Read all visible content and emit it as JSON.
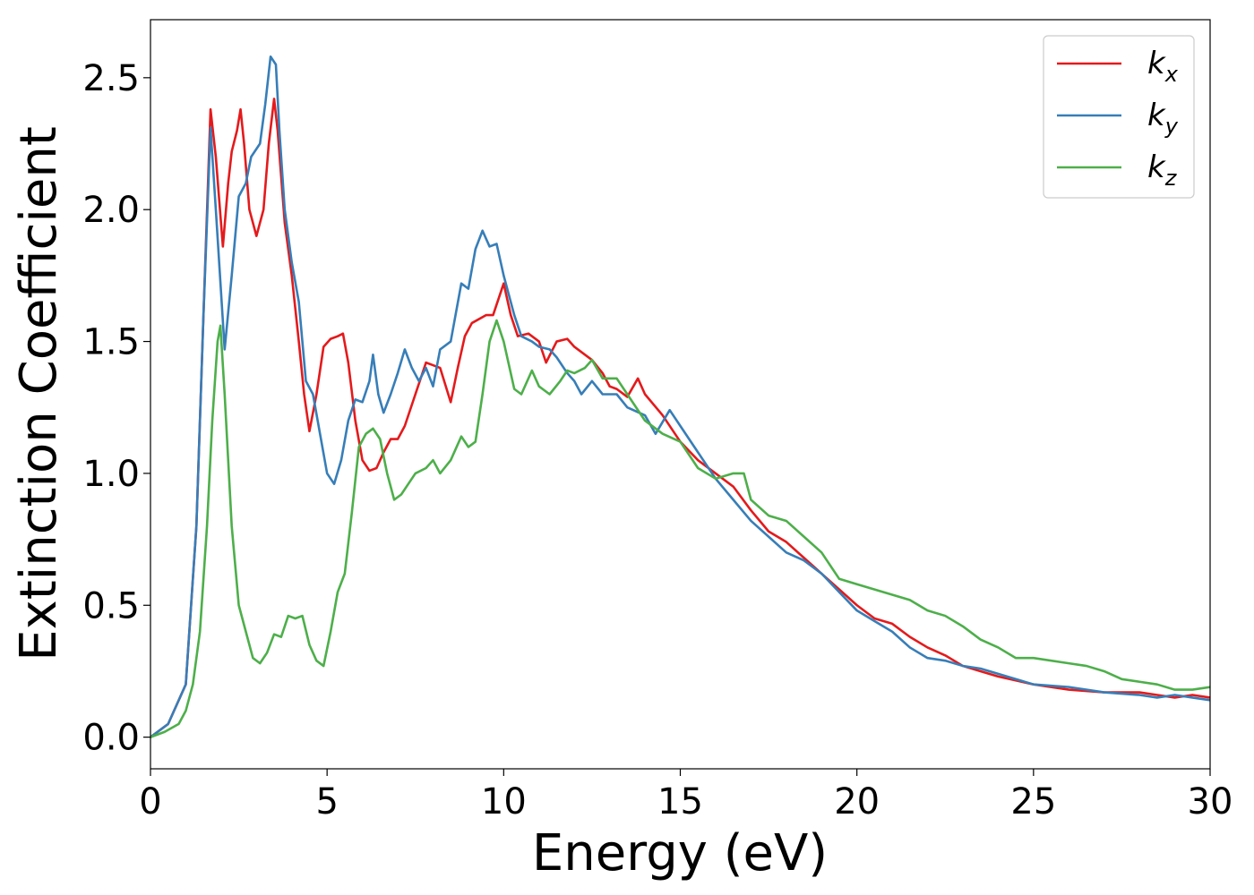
{
  "chart_data": {
    "type": "line",
    "title": "",
    "xlabel": "Energy (eV)",
    "ylabel": "Extinction Coefficient",
    "xlim": [
      0,
      30
    ],
    "ylim": [
      -0.12,
      2.72
    ],
    "grid": false,
    "legend_position": "top-right",
    "x_ticks": [
      "0",
      "5",
      "10",
      "15",
      "20",
      "25",
      "30"
    ],
    "y_ticks": [
      "0.0",
      "0.5",
      "1.0",
      "1.5",
      "2.0",
      "2.5"
    ],
    "series": [
      {
        "name": "k",
        "subscript": "x",
        "color": "#e41a1c",
        "points": [
          [
            0,
            0
          ],
          [
            0.5,
            0.05
          ],
          [
            1.0,
            0.2
          ],
          [
            1.3,
            0.8
          ],
          [
            1.5,
            1.6
          ],
          [
            1.7,
            2.38
          ],
          [
            1.85,
            2.2
          ],
          [
            2.05,
            1.86
          ],
          [
            2.2,
            2.1
          ],
          [
            2.3,
            2.22
          ],
          [
            2.45,
            2.3
          ],
          [
            2.55,
            2.38
          ],
          [
            2.65,
            2.25
          ],
          [
            2.8,
            2.0
          ],
          [
            3.0,
            1.9
          ],
          [
            3.2,
            2.0
          ],
          [
            3.35,
            2.25
          ],
          [
            3.5,
            2.42
          ],
          [
            3.6,
            2.3
          ],
          [
            3.8,
            1.95
          ],
          [
            4.0,
            1.75
          ],
          [
            4.2,
            1.5
          ],
          [
            4.35,
            1.3
          ],
          [
            4.5,
            1.16
          ],
          [
            4.7,
            1.3
          ],
          [
            4.9,
            1.48
          ],
          [
            5.1,
            1.51
          ],
          [
            5.3,
            1.52
          ],
          [
            5.45,
            1.53
          ],
          [
            5.6,
            1.42
          ],
          [
            5.8,
            1.2
          ],
          [
            6.0,
            1.05
          ],
          [
            6.2,
            1.01
          ],
          [
            6.4,
            1.02
          ],
          [
            6.6,
            1.08
          ],
          [
            6.8,
            1.13
          ],
          [
            7.0,
            1.13
          ],
          [
            7.2,
            1.18
          ],
          [
            7.5,
            1.3
          ],
          [
            7.8,
            1.42
          ],
          [
            8.0,
            1.41
          ],
          [
            8.2,
            1.4
          ],
          [
            8.5,
            1.27
          ],
          [
            8.7,
            1.4
          ],
          [
            8.9,
            1.52
          ],
          [
            9.1,
            1.57
          ],
          [
            9.5,
            1.6
          ],
          [
            9.7,
            1.6
          ],
          [
            10.0,
            1.72
          ],
          [
            10.2,
            1.6
          ],
          [
            10.4,
            1.52
          ],
          [
            10.7,
            1.53
          ],
          [
            11.0,
            1.5
          ],
          [
            11.2,
            1.42
          ],
          [
            11.5,
            1.5
          ],
          [
            11.8,
            1.51
          ],
          [
            12.0,
            1.48
          ],
          [
            12.3,
            1.45
          ],
          [
            12.5,
            1.43
          ],
          [
            12.8,
            1.38
          ],
          [
            13.0,
            1.33
          ],
          [
            13.2,
            1.32
          ],
          [
            13.5,
            1.29
          ],
          [
            13.8,
            1.36
          ],
          [
            14.0,
            1.3
          ],
          [
            14.5,
            1.22
          ],
          [
            15.0,
            1.12
          ],
          [
            15.5,
            1.05
          ],
          [
            16.0,
            1.0
          ],
          [
            16.5,
            0.95
          ],
          [
            17.0,
            0.86
          ],
          [
            17.5,
            0.78
          ],
          [
            18.0,
            0.74
          ],
          [
            18.5,
            0.68
          ],
          [
            19.0,
            0.62
          ],
          [
            19.5,
            0.56
          ],
          [
            20.0,
            0.5
          ],
          [
            20.5,
            0.45
          ],
          [
            21.0,
            0.43
          ],
          [
            21.5,
            0.38
          ],
          [
            22.0,
            0.34
          ],
          [
            22.5,
            0.31
          ],
          [
            23.0,
            0.27
          ],
          [
            23.5,
            0.25
          ],
          [
            24.0,
            0.23
          ],
          [
            25.0,
            0.2
          ],
          [
            26.0,
            0.18
          ],
          [
            27.0,
            0.17
          ],
          [
            28.0,
            0.17
          ],
          [
            28.5,
            0.16
          ],
          [
            29.0,
            0.15
          ],
          [
            29.5,
            0.16
          ],
          [
            30,
            0.15
          ]
        ]
      },
      {
        "name": "k",
        "subscript": "y",
        "color": "#377eb8",
        "points": [
          [
            0,
            0
          ],
          [
            0.5,
            0.05
          ],
          [
            1.0,
            0.2
          ],
          [
            1.3,
            0.8
          ],
          [
            1.5,
            1.6
          ],
          [
            1.7,
            2.31
          ],
          [
            1.85,
            2.0
          ],
          [
            2.1,
            1.47
          ],
          [
            2.3,
            1.75
          ],
          [
            2.5,
            2.05
          ],
          [
            2.7,
            2.1
          ],
          [
            2.85,
            2.2
          ],
          [
            3.1,
            2.25
          ],
          [
            3.25,
            2.4
          ],
          [
            3.4,
            2.58
          ],
          [
            3.55,
            2.55
          ],
          [
            3.65,
            2.3
          ],
          [
            3.8,
            2.0
          ],
          [
            4.0,
            1.8
          ],
          [
            4.2,
            1.65
          ],
          [
            4.4,
            1.35
          ],
          [
            4.6,
            1.3
          ],
          [
            4.8,
            1.15
          ],
          [
            5.0,
            1.0
          ],
          [
            5.2,
            0.96
          ],
          [
            5.4,
            1.05
          ],
          [
            5.6,
            1.2
          ],
          [
            5.8,
            1.28
          ],
          [
            6.0,
            1.27
          ],
          [
            6.2,
            1.35
          ],
          [
            6.3,
            1.45
          ],
          [
            6.45,
            1.3
          ],
          [
            6.6,
            1.23
          ],
          [
            6.8,
            1.3
          ],
          [
            7.0,
            1.38
          ],
          [
            7.2,
            1.47
          ],
          [
            7.4,
            1.4
          ],
          [
            7.6,
            1.35
          ],
          [
            7.8,
            1.4
          ],
          [
            8.0,
            1.33
          ],
          [
            8.2,
            1.47
          ],
          [
            8.5,
            1.5
          ],
          [
            8.8,
            1.72
          ],
          [
            9.0,
            1.7
          ],
          [
            9.2,
            1.85
          ],
          [
            9.4,
            1.92
          ],
          [
            9.6,
            1.86
          ],
          [
            9.8,
            1.87
          ],
          [
            10.0,
            1.75
          ],
          [
            10.3,
            1.6
          ],
          [
            10.5,
            1.52
          ],
          [
            10.8,
            1.5
          ],
          [
            11.0,
            1.48
          ],
          [
            11.3,
            1.47
          ],
          [
            11.5,
            1.44
          ],
          [
            11.8,
            1.38
          ],
          [
            12.0,
            1.35
          ],
          [
            12.2,
            1.3
          ],
          [
            12.5,
            1.35
          ],
          [
            12.8,
            1.3
          ],
          [
            13.2,
            1.3
          ],
          [
            13.5,
            1.25
          ],
          [
            14.0,
            1.22
          ],
          [
            14.3,
            1.15
          ],
          [
            14.7,
            1.24
          ],
          [
            15.0,
            1.18
          ],
          [
            15.5,
            1.08
          ],
          [
            16.0,
            0.98
          ],
          [
            16.5,
            0.9
          ],
          [
            17.0,
            0.82
          ],
          [
            17.5,
            0.76
          ],
          [
            18.0,
            0.7
          ],
          [
            18.5,
            0.67
          ],
          [
            19.0,
            0.62
          ],
          [
            19.5,
            0.55
          ],
          [
            20.0,
            0.48
          ],
          [
            20.5,
            0.44
          ],
          [
            21.0,
            0.4
          ],
          [
            21.5,
            0.34
          ],
          [
            22.0,
            0.3
          ],
          [
            22.5,
            0.29
          ],
          [
            23.0,
            0.27
          ],
          [
            23.5,
            0.26
          ],
          [
            24.0,
            0.24
          ],
          [
            25.0,
            0.2
          ],
          [
            26.0,
            0.19
          ],
          [
            27.0,
            0.17
          ],
          [
            28.0,
            0.16
          ],
          [
            28.5,
            0.15
          ],
          [
            29.0,
            0.16
          ],
          [
            29.5,
            0.15
          ],
          [
            30,
            0.14
          ]
        ]
      },
      {
        "name": "k",
        "subscript": "z",
        "color": "#4daf4a",
        "points": [
          [
            0,
            0
          ],
          [
            0.4,
            0.02
          ],
          [
            0.8,
            0.05
          ],
          [
            1.0,
            0.1
          ],
          [
            1.2,
            0.2
          ],
          [
            1.4,
            0.4
          ],
          [
            1.6,
            0.8
          ],
          [
            1.75,
            1.2
          ],
          [
            1.9,
            1.5
          ],
          [
            1.98,
            1.56
          ],
          [
            2.1,
            1.3
          ],
          [
            2.3,
            0.8
          ],
          [
            2.5,
            0.5
          ],
          [
            2.7,
            0.4
          ],
          [
            2.9,
            0.3
          ],
          [
            3.1,
            0.28
          ],
          [
            3.3,
            0.32
          ],
          [
            3.5,
            0.39
          ],
          [
            3.7,
            0.38
          ],
          [
            3.9,
            0.46
          ],
          [
            4.1,
            0.45
          ],
          [
            4.3,
            0.46
          ],
          [
            4.5,
            0.35
          ],
          [
            4.7,
            0.29
          ],
          [
            4.9,
            0.27
          ],
          [
            5.1,
            0.4
          ],
          [
            5.3,
            0.55
          ],
          [
            5.5,
            0.62
          ],
          [
            5.7,
            0.85
          ],
          [
            5.9,
            1.1
          ],
          [
            6.1,
            1.15
          ],
          [
            6.3,
            1.17
          ],
          [
            6.5,
            1.13
          ],
          [
            6.7,
            1.0
          ],
          [
            6.9,
            0.9
          ],
          [
            7.1,
            0.92
          ],
          [
            7.3,
            0.96
          ],
          [
            7.5,
            1.0
          ],
          [
            7.8,
            1.02
          ],
          [
            8.0,
            1.05
          ],
          [
            8.2,
            1.0
          ],
          [
            8.5,
            1.05
          ],
          [
            8.8,
            1.14
          ],
          [
            9.0,
            1.1
          ],
          [
            9.2,
            1.12
          ],
          [
            9.4,
            1.3
          ],
          [
            9.6,
            1.5
          ],
          [
            9.8,
            1.58
          ],
          [
            10.0,
            1.5
          ],
          [
            10.3,
            1.32
          ],
          [
            10.5,
            1.3
          ],
          [
            10.8,
            1.39
          ],
          [
            11.0,
            1.33
          ],
          [
            11.3,
            1.3
          ],
          [
            11.6,
            1.35
          ],
          [
            11.8,
            1.39
          ],
          [
            12.0,
            1.38
          ],
          [
            12.3,
            1.4
          ],
          [
            12.5,
            1.43
          ],
          [
            12.8,
            1.36
          ],
          [
            13.2,
            1.36
          ],
          [
            13.5,
            1.3
          ],
          [
            14.0,
            1.2
          ],
          [
            14.5,
            1.15
          ],
          [
            15.0,
            1.12
          ],
          [
            15.5,
            1.02
          ],
          [
            16.0,
            0.98
          ],
          [
            16.5,
            1.0
          ],
          [
            16.8,
            1.0
          ],
          [
            17.0,
            0.9
          ],
          [
            17.5,
            0.84
          ],
          [
            18.0,
            0.82
          ],
          [
            18.5,
            0.76
          ],
          [
            19.0,
            0.7
          ],
          [
            19.5,
            0.6
          ],
          [
            20.0,
            0.58
          ],
          [
            20.5,
            0.56
          ],
          [
            21.0,
            0.54
          ],
          [
            21.5,
            0.52
          ],
          [
            22.0,
            0.48
          ],
          [
            22.5,
            0.46
          ],
          [
            23.0,
            0.42
          ],
          [
            23.5,
            0.37
          ],
          [
            24.0,
            0.34
          ],
          [
            24.5,
            0.3
          ],
          [
            25.0,
            0.3
          ],
          [
            26.0,
            0.28
          ],
          [
            26.5,
            0.27
          ],
          [
            27.0,
            0.25
          ],
          [
            27.5,
            0.22
          ],
          [
            28.0,
            0.21
          ],
          [
            28.5,
            0.2
          ],
          [
            29.0,
            0.18
          ],
          [
            29.5,
            0.18
          ],
          [
            30,
            0.19
          ]
        ]
      }
    ]
  }
}
